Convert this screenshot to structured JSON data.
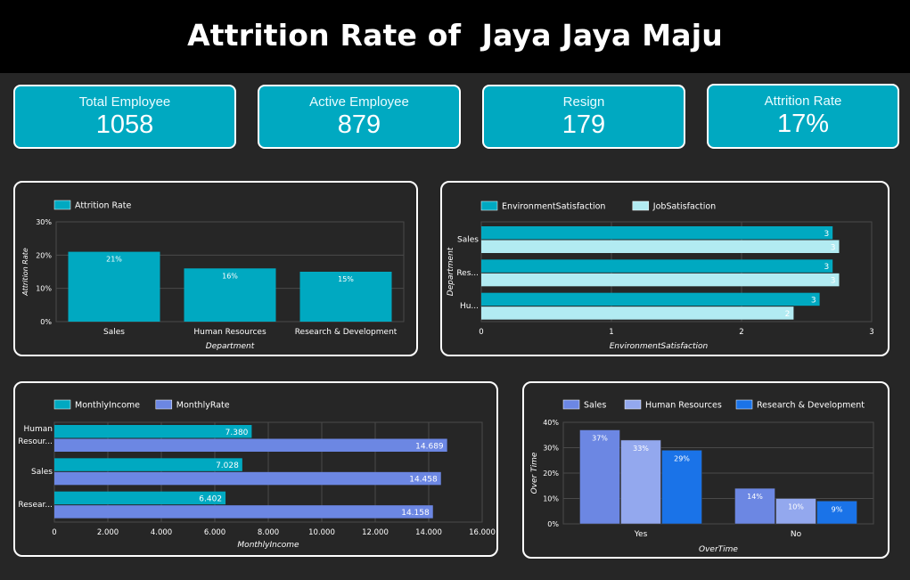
{
  "title": "Attrition Rate of  Jaya Jaya Maju",
  "kpis": [
    {
      "label": "Total Employee",
      "value": "1058"
    },
    {
      "label": "Active Employee",
      "value": "879"
    },
    {
      "label": "Resign",
      "value": "179"
    },
    {
      "label": "Attrition Rate",
      "value": "17%"
    }
  ],
  "colors": {
    "teal": "#00a9c1",
    "light_teal": "#b2ebf2",
    "blue": "#6c87e3",
    "light_blue": "#93a8ee",
    "bright_blue": "#1a73e8",
    "grid": "#4a4a4a"
  },
  "chart_data": [
    {
      "id": "attrition",
      "type": "bar",
      "orientation": "vertical",
      "categories": [
        "Sales",
        "Human Resources",
        "Research & Development"
      ],
      "series": [
        {
          "name": "Attrition Rate",
          "values": [
            21,
            16,
            15
          ],
          "labels": [
            "21%",
            "16%",
            "15%"
          ]
        }
      ],
      "xlabel": "Department",
      "ylabel": "Attrition Rate",
      "ylim": [
        0,
        30
      ],
      "yticks": [
        "0%",
        "10%",
        "20%",
        "30%"
      ],
      "legend": "top-left",
      "grid": true
    },
    {
      "id": "satisfaction",
      "type": "bar",
      "orientation": "horizontal",
      "categories": [
        "Sales",
        "Res...",
        "Hu..."
      ],
      "series": [
        {
          "name": "EnvironmentSatisfaction",
          "values": [
            2.7,
            2.7,
            2.6
          ],
          "labels": [
            "3",
            "3",
            "3"
          ]
        },
        {
          "name": "JobSatisfaction",
          "values": [
            2.75,
            2.75,
            2.4
          ],
          "labels": [
            "3",
            "3",
            "2"
          ]
        }
      ],
      "xlabel": "EnvironmentSatisfaction",
      "ylabel": "Department",
      "xlim": [
        0,
        3
      ],
      "xticks": [
        "0",
        "1",
        "2",
        "3"
      ],
      "legend": "top-left",
      "grid": true
    },
    {
      "id": "income",
      "type": "bar",
      "orientation": "horizontal",
      "categories": [
        [
          "Human",
          "Resour..."
        ],
        [
          "Sales"
        ],
        [
          "Resear..."
        ]
      ],
      "series": [
        {
          "name": "MonthlyIncome",
          "values": [
            7380,
            7028,
            6402
          ],
          "labels": [
            "7.380",
            "7.028",
            "6.402"
          ]
        },
        {
          "name": "MonthlyRate",
          "values": [
            14689,
            14458,
            14158
          ],
          "labels": [
            "14.689",
            "14.458",
            "14.158"
          ]
        }
      ],
      "xlabel": "MonthlyIncome",
      "xlim": [
        0,
        16000
      ],
      "xticks": [
        "0",
        "2.000",
        "4.000",
        "6.000",
        "8.000",
        "10.000",
        "12.000",
        "14.000",
        "16.000"
      ],
      "legend": "top-left",
      "grid": true
    },
    {
      "id": "overtime",
      "type": "bar",
      "orientation": "vertical",
      "categories": [
        "Yes",
        "No"
      ],
      "series": [
        {
          "name": "Sales",
          "values": [
            37,
            14
          ],
          "labels": [
            "37%",
            "14%"
          ]
        },
        {
          "name": "Human Resources",
          "values": [
            33,
            10
          ],
          "labels": [
            "33%",
            "10%"
          ]
        },
        {
          "name": "Research & Development",
          "values": [
            29,
            9
          ],
          "labels": [
            "29%",
            "9%"
          ]
        }
      ],
      "xlabel": "OverTime",
      "ylabel": "Over Time",
      "ylim": [
        0,
        40
      ],
      "yticks": [
        "0%",
        "10%",
        "20%",
        "30%",
        "40%"
      ],
      "legend": "top-left",
      "grid": true
    }
  ]
}
